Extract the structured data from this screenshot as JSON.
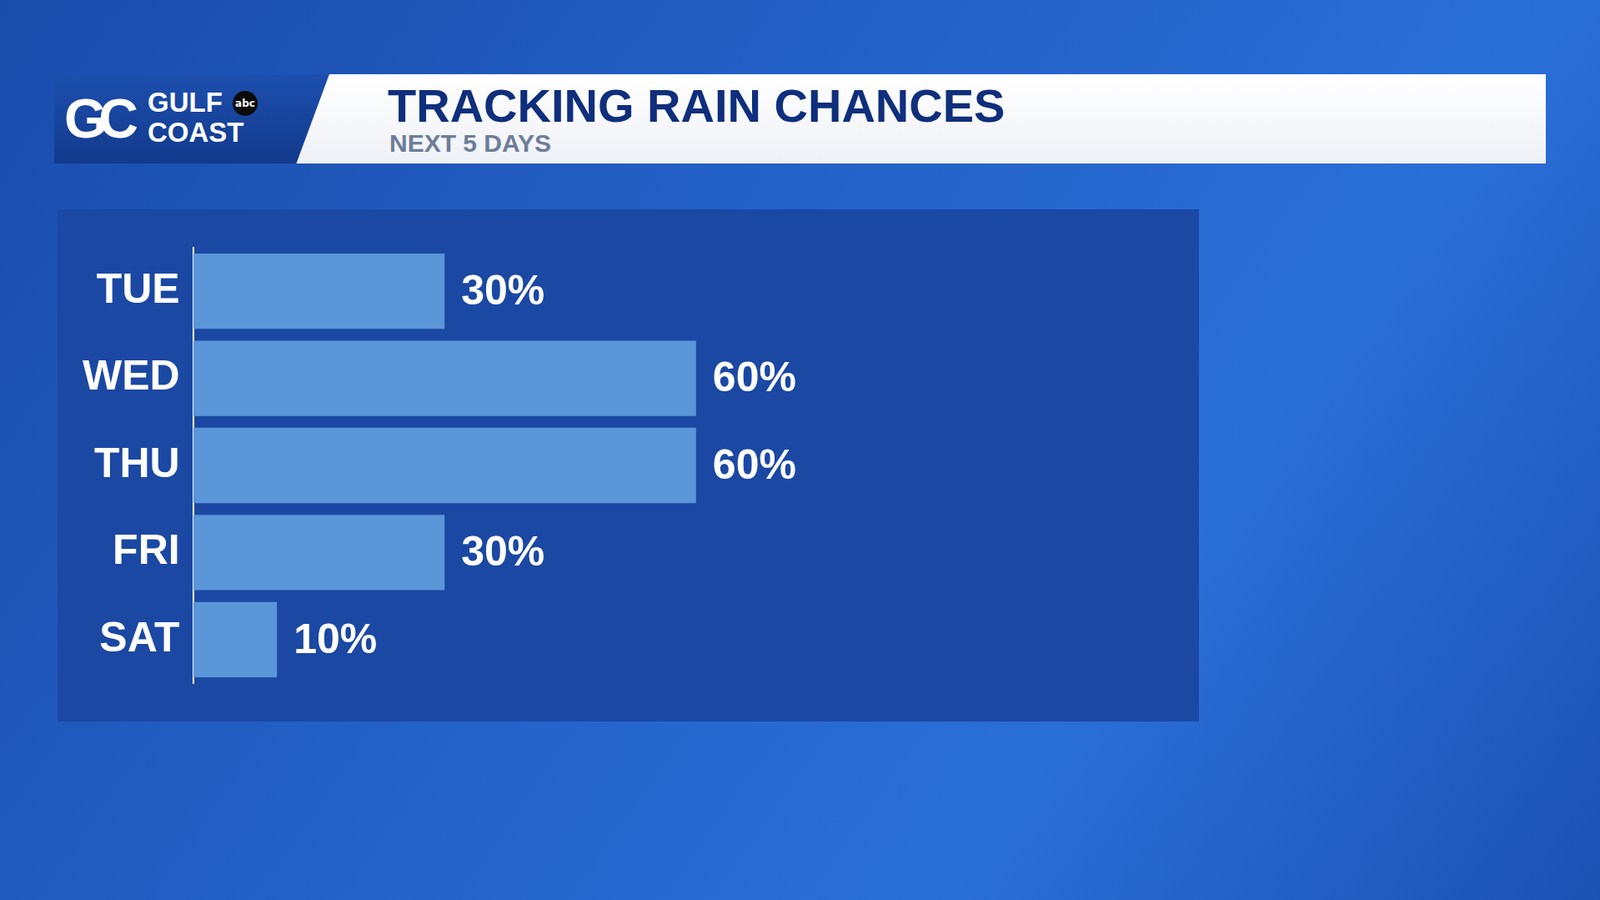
{
  "header": {
    "logo_mark": "GC",
    "brand_lines": [
      "GULF",
      "COAST"
    ],
    "network": "abc"
  },
  "chart_data": {
    "type": "bar",
    "orientation": "horizontal",
    "title": "TRACKING RAIN CHANCES",
    "subtitle": "NEXT 5 DAYS",
    "categories": [
      "TUE",
      "WED",
      "THU",
      "FRI",
      "SAT"
    ],
    "values": [
      30,
      60,
      60,
      30,
      10
    ],
    "value_labels": [
      "30%",
      "60%",
      "60%",
      "30%",
      "10%"
    ],
    "data_labels": true,
    "color": "#5b96d8",
    "xlim": [
      0,
      120
    ],
    "tick_labels": "y",
    "grid": false
  }
}
